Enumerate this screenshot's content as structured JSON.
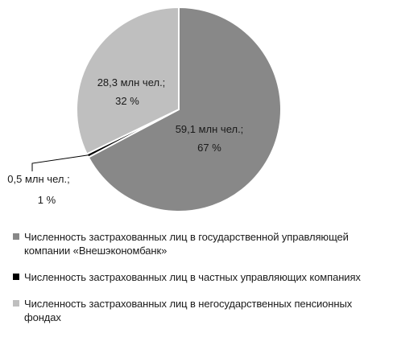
{
  "chart_data": {
    "type": "pie",
    "title": "",
    "slices": [
      {
        "label": "59,1 млн чел.;",
        "pct_label": "67 %",
        "value": 59.1,
        "percent": 67,
        "color": "#888888"
      },
      {
        "label": "0,5 млн чел.;",
        "pct_label": "1 %",
        "value": 0.5,
        "percent": 1,
        "color": "#000000"
      },
      {
        "label": "28,3 млн чел.;",
        "pct_label": "32 %",
        "value": 28.3,
        "percent": 32,
        "color": "#bfbfbf"
      }
    ],
    "legend": [
      {
        "label": "Численность застрахованных лиц в государственной управляющей компании «Внешэкономбанк»",
        "color": "#888888"
      },
      {
        "label": "Численность застрахованных лиц в частных управляющих компаниях",
        "color": "#000000"
      },
      {
        "label": "Численность застрахованных лиц в негосударственных пенсионных фондах",
        "color": "#bfbfbf"
      }
    ],
    "legend_position": "bottom"
  }
}
